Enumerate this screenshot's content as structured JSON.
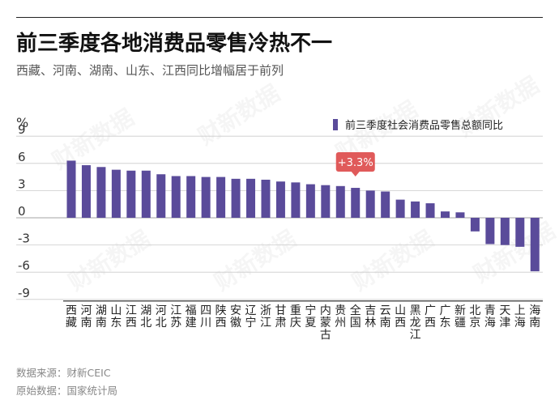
{
  "title": "前三季度各地消费品零售冷热不一",
  "subtitle": "西藏、河南、湖南、山东、江西同比增幅居于前列",
  "source_1": "数据来源：财新CEIC",
  "source_2": "原始数据：国家统计局",
  "watermark": "财新数据",
  "colors": {
    "bar": "#5a4b9a",
    "callout": "#e05a5a",
    "axis": "#222222",
    "grid": "#cccccc"
  },
  "chart_data": {
    "type": "bar",
    "y_unit": "%",
    "ylim": [
      -9,
      11
    ],
    "yticks": [
      9,
      6,
      3,
      0,
      -3,
      -6,
      -9
    ],
    "grid": true,
    "legend": {
      "position": "top-right",
      "label": "前三季度社会消费品零售总额同比"
    },
    "categories": [
      "西藏",
      "河南",
      "湖南",
      "山东",
      "江西",
      "湖北",
      "河北",
      "江苏",
      "福建",
      "四川",
      "陕西",
      "安徽",
      "辽宁",
      "浙江",
      "甘肃",
      "重庆",
      "宁夏",
      "内蒙古",
      "贵州",
      "全国",
      "吉林",
      "云南",
      "山西",
      "黑龙江",
      "广西",
      "广东",
      "新疆",
      "北京",
      "青海",
      "天津",
      "上海",
      "海南"
    ],
    "values": [
      6.3,
      5.8,
      5.6,
      5.3,
      5.2,
      5.2,
      4.8,
      4.6,
      4.6,
      4.5,
      4.5,
      4.3,
      4.3,
      4.2,
      4.0,
      3.9,
      3.7,
      3.6,
      3.5,
      3.3,
      3.0,
      2.9,
      2.0,
      1.8,
      1.6,
      0.7,
      0.6,
      -1.5,
      -2.9,
      -3.0,
      -3.2,
      -5.9
    ],
    "annotation": {
      "category": "全国",
      "label": "+3.3%"
    }
  }
}
